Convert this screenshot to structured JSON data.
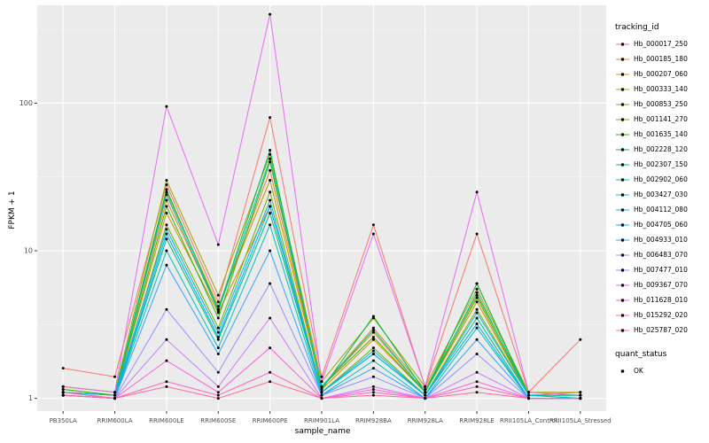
{
  "figure": {
    "background": "#FFFFFF",
    "panel_background": "#EBEBEB",
    "grid_major_color": "#FFFFFF",
    "grid_minor_color": "#F6F6F6",
    "tick_color": "#333333",
    "axis_text_color": "#4D4D4D",
    "point_color": "#000000"
  },
  "axes": {
    "x_label": "sample_name",
    "y_label": "FPKM + 1",
    "y_tick_labels": [
      "1",
      "10",
      "100"
    ]
  },
  "legend": {
    "tracking_title": "tracking_id",
    "quant_title": "quant_status",
    "quant_items": [
      {
        "label": "OK"
      }
    ]
  },
  "chart_data": {
    "type": "line",
    "title": "",
    "xlabel": "sample_name",
    "ylabel": "FPKM + 1",
    "y_scale": "log10",
    "ylim": [
      0.82,
      460
    ],
    "y_major_ticks": [
      1,
      10,
      100
    ],
    "y_minor_ticks": [
      3.162,
      31.62,
      316.2
    ],
    "grid": true,
    "legend_position": "right",
    "categories": [
      "PB350LA",
      "RRIM600LA",
      "RRIM600LE",
      "RRIM600SE",
      "RRIM600PE",
      "RRIM901LA",
      "RRIM928BA",
      "RRIM928LA",
      "RRIM928LE",
      "RRII105LA_Control",
      "RRII105LA_Stressed"
    ],
    "series": [
      {
        "name": "Hb_000017_250",
        "color": "#F8766D",
        "values": [
          1.6,
          1.4,
          28,
          4.5,
          80,
          1.4,
          15,
          1.2,
          13,
          1.1,
          2.5
        ]
      },
      {
        "name": "Hb_000185_180",
        "color": "#EA8331",
        "values": [
          1.2,
          1.1,
          22,
          4.0,
          35,
          1.2,
          2.8,
          1.1,
          6.0,
          1.05,
          1.1
        ]
      },
      {
        "name": "Hb_000207_060",
        "color": "#D89000",
        "values": [
          1.15,
          1.05,
          18,
          3.8,
          20,
          1.15,
          2.5,
          1.1,
          4.5,
          1.05,
          1.05
        ]
      },
      {
        "name": "Hb_000333_140",
        "color": "#C09B00",
        "values": [
          1.1,
          1.05,
          25,
          4.2,
          30,
          1.2,
          3.0,
          1.15,
          5.0,
          1.1,
          1.05
        ]
      },
      {
        "name": "Hb_000853_250",
        "color": "#A3A500",
        "values": [
          1.2,
          1.1,
          30,
          5.0,
          45,
          1.3,
          3.5,
          1.2,
          5.5,
          1.1,
          1.1
        ]
      },
      {
        "name": "Hb_001141_270",
        "color": "#7CAE00",
        "values": [
          1.1,
          1.0,
          15,
          3.0,
          25,
          1.1,
          2.2,
          1.05,
          4.0,
          1.05,
          1.0
        ]
      },
      {
        "name": "Hb_001635_140",
        "color": "#39B600",
        "values": [
          1.15,
          1.05,
          20,
          3.5,
          40,
          1.2,
          2.6,
          1.1,
          4.8,
          1.05,
          1.05
        ]
      },
      {
        "name": "Hb_002228_120",
        "color": "#00BB4E",
        "values": [
          1.1,
          1.05,
          26,
          4.0,
          48,
          1.15,
          3.6,
          1.1,
          6.0,
          1.05,
          1.05
        ]
      },
      {
        "name": "Hb_002307_150",
        "color": "#00BF7D",
        "values": [
          1.05,
          1.0,
          12,
          2.5,
          18,
          1.1,
          2.0,
          1.05,
          3.5,
          1.0,
          1.0
        ]
      },
      {
        "name": "Hb_002902_060",
        "color": "#00C1A3",
        "values": [
          1.1,
          1.05,
          24,
          3.9,
          42,
          1.2,
          2.9,
          1.1,
          5.2,
          1.05,
          1.05
        ]
      },
      {
        "name": "Hb_003427_030",
        "color": "#00BFC4",
        "values": [
          1.05,
          1.0,
          10,
          2.2,
          15,
          1.05,
          1.8,
          1.0,
          3.0,
          1.0,
          1.0
        ]
      },
      {
        "name": "Hb_004112_080",
        "color": "#00BAE0",
        "values": [
          1.1,
          1.05,
          14,
          2.8,
          22,
          1.1,
          2.1,
          1.05,
          3.8,
          1.05,
          1.0
        ]
      },
      {
        "name": "Hb_004705_060",
        "color": "#00B0F6",
        "values": [
          1.05,
          1.0,
          13,
          2.6,
          20,
          1.1,
          2.0,
          1.05,
          3.2,
          1.0,
          1.0
        ]
      },
      {
        "name": "Hb_004933_010",
        "color": "#35A2FF",
        "values": [
          1.05,
          1.0,
          8.0,
          2.0,
          10,
          1.05,
          1.6,
          1.0,
          2.5,
          1.0,
          1.0
        ]
      },
      {
        "name": "Hb_006483_070",
        "color": "#9590FF",
        "values": [
          1.1,
          1.0,
          4.0,
          1.5,
          6.0,
          1.05,
          1.4,
          1.0,
          2.0,
          1.0,
          1.0
        ]
      },
      {
        "name": "Hb_007477_010",
        "color": "#C77CFF",
        "values": [
          1.05,
          1.0,
          2.5,
          1.2,
          3.5,
          1.0,
          1.2,
          1.0,
          1.5,
          1.0,
          1.0
        ]
      },
      {
        "name": "Hb_009367_070",
        "color": "#E76BF3",
        "values": [
          1.2,
          1.1,
          95,
          11,
          400,
          1.3,
          13,
          1.2,
          25,
          1.1,
          1.05
        ]
      },
      {
        "name": "Hb_011628_010",
        "color": "#FA62DB",
        "values": [
          1.05,
          1.0,
          1.8,
          1.1,
          2.2,
          1.0,
          1.15,
          1.0,
          1.3,
          1.0,
          1.0
        ]
      },
      {
        "name": "Hb_015292_020",
        "color": "#FF62BC",
        "values": [
          1.1,
          1.0,
          1.3,
          1.05,
          1.5,
          1.0,
          1.1,
          1.0,
          1.2,
          1.0,
          1.0
        ]
      },
      {
        "name": "Hb_025787_020",
        "color": "#FF6A98",
        "values": [
          1.05,
          1.0,
          1.2,
          1.0,
          1.3,
          1.0,
          1.05,
          1.0,
          1.1,
          1.0,
          1.0
        ]
      }
    ],
    "quant_status": "OK"
  }
}
